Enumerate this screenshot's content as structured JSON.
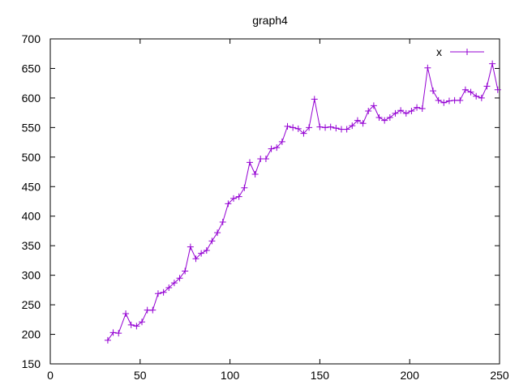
{
  "chart_data": {
    "type": "line",
    "title": "graph4",
    "xlabel": "",
    "ylabel": "",
    "xlim": [
      0,
      250
    ],
    "ylim": [
      150,
      700
    ],
    "xticks": [
      0,
      50,
      100,
      150,
      200,
      250
    ],
    "yticks": [
      150,
      200,
      250,
      300,
      350,
      400,
      450,
      500,
      550,
      600,
      650,
      700
    ],
    "grid": false,
    "legend_position": "top-right",
    "series": [
      {
        "name": "x",
        "color": "#9400d3",
        "marker": "plus",
        "x": [
          32,
          35,
          38,
          42,
          45,
          48,
          51,
          54,
          57,
          60,
          63,
          66,
          69,
          72,
          75,
          78,
          81,
          84,
          87,
          90,
          93,
          96,
          99,
          102,
          105,
          108,
          111,
          114,
          117,
          120,
          123,
          126,
          129,
          132,
          135,
          138,
          141,
          144,
          147,
          150,
          153,
          156,
          159,
          162,
          165,
          168,
          171,
          174,
          177,
          180,
          183,
          186,
          189,
          192,
          195,
          198,
          201,
          204,
          207,
          210,
          213,
          216,
          219,
          222,
          225,
          228,
          231,
          234,
          237,
          240,
          243,
          246,
          249
        ],
        "y": [
          190,
          203,
          202,
          235,
          216,
          214,
          221,
          241,
          241,
          269,
          271,
          279,
          287,
          295,
          307,
          348,
          328,
          337,
          342,
          358,
          372,
          390,
          421,
          430,
          433,
          448,
          491,
          471,
          497,
          497,
          514,
          516,
          526,
          552,
          550,
          548,
          540,
          550,
          598,
          551,
          550,
          551,
          549,
          547,
          547,
          553,
          562,
          557,
          578,
          587,
          567,
          562,
          567,
          574,
          579,
          574,
          578,
          584,
          582,
          651,
          612,
          596,
          592,
          595,
          596,
          596,
          614,
          610,
          603,
          600,
          620,
          658,
          614
        ]
      }
    ]
  }
}
